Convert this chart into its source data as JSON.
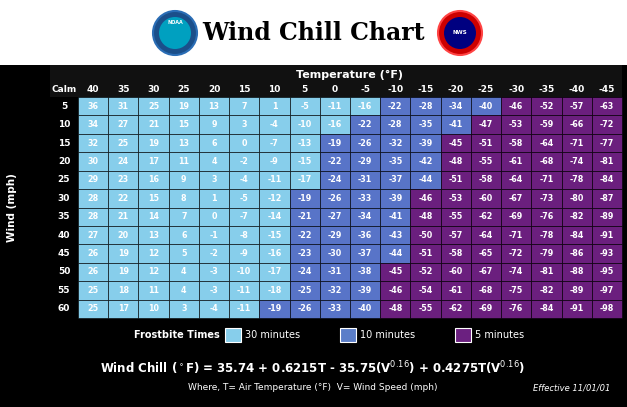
{
  "title": "Wind Chill Chart",
  "temp_label": "Temperature (°F)",
  "wind_label": "Wind (mph)",
  "temp_cols": [
    40,
    35,
    30,
    25,
    20,
    15,
    10,
    5,
    0,
    -5,
    -10,
    -15,
    -20,
    -25,
    -30,
    -35,
    -40,
    -45
  ],
  "wind_rows": [
    5,
    10,
    15,
    20,
    25,
    30,
    35,
    40,
    45,
    50,
    55,
    60
  ],
  "wind_chill": [
    [
      36,
      31,
      25,
      19,
      13,
      7,
      1,
      -5,
      -11,
      -16,
      -22,
      -28,
      -34,
      -40,
      -46,
      -52,
      -57,
      -63
    ],
    [
      34,
      27,
      21,
      15,
      9,
      3,
      -4,
      -10,
      -16,
      -22,
      -28,
      -35,
      -41,
      -47,
      -53,
      -59,
      -66,
      -72
    ],
    [
      32,
      25,
      19,
      13,
      6,
      0,
      -7,
      -13,
      -19,
      -26,
      -32,
      -39,
      -45,
      -51,
      -58,
      -64,
      -71,
      -77
    ],
    [
      30,
      24,
      17,
      11,
      4,
      -2,
      -9,
      -15,
      -22,
      -29,
      -35,
      -42,
      -48,
      -55,
      -61,
      -68,
      -74,
      -81
    ],
    [
      29,
      23,
      16,
      9,
      3,
      -4,
      -11,
      -17,
      -24,
      -31,
      -37,
      -44,
      -51,
      -58,
      -64,
      -71,
      -78,
      -84
    ],
    [
      28,
      22,
      15,
      8,
      1,
      -5,
      -12,
      -19,
      -26,
      -33,
      -39,
      -46,
      -53,
      -60,
      -67,
      -73,
      -80,
      -87
    ],
    [
      28,
      21,
      14,
      7,
      0,
      -7,
      -14,
      -21,
      -27,
      -34,
      -41,
      -48,
      -55,
      -62,
      -69,
      -76,
      -82,
      -89
    ],
    [
      27,
      20,
      13,
      6,
      -1,
      -8,
      -15,
      -22,
      -29,
      -36,
      -43,
      -50,
      -57,
      -64,
      -71,
      -78,
      -84,
      -91
    ],
    [
      26,
      19,
      12,
      5,
      -2,
      -9,
      -16,
      -23,
      -30,
      -37,
      -44,
      -51,
      -58,
      -65,
      -72,
      -79,
      -86,
      -93
    ],
    [
      26,
      19,
      12,
      4,
      -3,
      -10,
      -17,
      -24,
      -31,
      -38,
      -45,
      -52,
      -60,
      -67,
      -74,
      -81,
      -88,
      -95
    ],
    [
      25,
      18,
      11,
      4,
      -3,
      -11,
      -18,
      -25,
      -32,
      -39,
      -46,
      -54,
      -61,
      -68,
      -75,
      -82,
      -89,
      -97
    ],
    [
      25,
      17,
      10,
      3,
      -4,
      -11,
      -19,
      -26,
      -33,
      -40,
      -48,
      -55,
      -62,
      -69,
      -76,
      -84,
      -91,
      -98
    ]
  ],
  "cell_colors": [
    [
      "#87CEEB",
      "#87CEEB",
      "#87CEEB",
      "#87CEEB",
      "#87CEEB",
      "#87CEEB",
      "#87CEEB",
      "#87CEEB",
      "#87CEEB",
      "#87CEEB",
      "#87CEEB",
      "#87CEEB",
      "#87CEEB",
      "#87CEEB",
      "#87CEEB",
      "#87CEEB",
      "#87CEEB",
      "#87CEEB"
    ],
    [
      "#87CEEB",
      "#87CEEB",
      "#87CEEB",
      "#87CEEB",
      "#87CEEB",
      "#87CEEB",
      "#87CEEB",
      "#87CEEB",
      "#87CEEB",
      "#87CEEB",
      "#87CEEB",
      "#87CEEB",
      "#87CEEB",
      "#87CEEB",
      "#87CEEB",
      "#87CEEB",
      "#87CEEB",
      "#87CEEB"
    ],
    [
      "#87CEEB",
      "#87CEEB",
      "#87CEEB",
      "#87CEEB",
      "#87CEEB",
      "#87CEEB",
      "#87CEEB",
      "#87CEEB",
      "#87CEEB",
      "#87CEEB",
      "#87CEEB",
      "#87CEEB",
      "#87CEEB",
      "#87CEEB",
      "#87CEEB",
      "#87CEEB",
      "#87CEEB",
      "#87CEEB"
    ],
    [
      "#87CEEB",
      "#87CEEB",
      "#87CEEB",
      "#87CEEB",
      "#87CEEB",
      "#87CEEB",
      "#87CEEB",
      "#87CEEB",
      "#87CEEB",
      "#87CEEB",
      "#87CEEB",
      "#87CEEB",
      "#87CEEB",
      "#87CEEB",
      "#87CEEB",
      "#87CEEB",
      "#87CEEB",
      "#87CEEB"
    ],
    [
      "#87CEEB",
      "#87CEEB",
      "#87CEEB",
      "#87CEEB",
      "#87CEEB",
      "#87CEEB",
      "#87CEEB",
      "#87CEEB",
      "#87CEEB",
      "#87CEEB",
      "#87CEEB",
      "#87CEEB",
      "#87CEEB",
      "#87CEEB",
      "#87CEEB",
      "#87CEEB",
      "#87CEEB",
      "#87CEEB"
    ],
    [
      "#87CEEB",
      "#87CEEB",
      "#87CEEB",
      "#87CEEB",
      "#87CEEB",
      "#87CEEB",
      "#87CEEB",
      "#87CEEB",
      "#87CEEB",
      "#87CEEB",
      "#87CEEB",
      "#87CEEB",
      "#87CEEB",
      "#87CEEB",
      "#87CEEB",
      "#87CEEB",
      "#87CEEB",
      "#87CEEB"
    ],
    [
      "#87CEEB",
      "#87CEEB",
      "#87CEEB",
      "#87CEEB",
      "#87CEEB",
      "#87CEEB",
      "#87CEEB",
      "#87CEEB",
      "#87CEEB",
      "#87CEEB",
      "#87CEEB",
      "#87CEEB",
      "#87CEEB",
      "#87CEEB",
      "#87CEEB",
      "#87CEEB",
      "#87CEEB",
      "#87CEEB"
    ],
    [
      "#87CEEB",
      "#87CEEB",
      "#87CEEB",
      "#87CEEB",
      "#87CEEB",
      "#87CEEB",
      "#87CEEB",
      "#87CEEB",
      "#87CEEB",
      "#87CEEB",
      "#87CEEB",
      "#87CEEB",
      "#87CEEB",
      "#87CEEB",
      "#87CEEB",
      "#87CEEB",
      "#87CEEB",
      "#87CEEB"
    ],
    [
      "#87CEEB",
      "#87CEEB",
      "#87CEEB",
      "#87CEEB",
      "#87CEEB",
      "#87CEEB",
      "#87CEEB",
      "#87CEEB",
      "#87CEEB",
      "#87CEEB",
      "#87CEEB",
      "#87CEEB",
      "#87CEEB",
      "#87CEEB",
      "#87CEEB",
      "#87CEEB",
      "#87CEEB",
      "#87CEEB"
    ],
    [
      "#87CEEB",
      "#87CEEB",
      "#87CEEB",
      "#87CEEB",
      "#87CEEB",
      "#87CEEB",
      "#87CEEB",
      "#87CEEB",
      "#87CEEB",
      "#87CEEB",
      "#87CEEB",
      "#87CEEB",
      "#87CEEB",
      "#87CEEB",
      "#87CEEB",
      "#87CEEB",
      "#87CEEB",
      "#87CEEB"
    ],
    [
      "#87CEEB",
      "#87CEEB",
      "#87CEEB",
      "#87CEEB",
      "#87CEEB",
      "#87CEEB",
      "#87CEEB",
      "#87CEEB",
      "#87CEEB",
      "#87CEEB",
      "#87CEEB",
      "#87CEEB",
      "#87CEEB",
      "#87CEEB",
      "#87CEEB",
      "#87CEEB",
      "#87CEEB",
      "#87CEEB"
    ],
    [
      "#87CEEB",
      "#87CEEB",
      "#87CEEB",
      "#87CEEB",
      "#87CEEB",
      "#87CEEB",
      "#87CEEB",
      "#87CEEB",
      "#87CEEB",
      "#87CEEB",
      "#87CEEB",
      "#87CEEB",
      "#87CEEB",
      "#87CEEB",
      "#87CEEB",
      "#87CEEB",
      "#87CEEB",
      "#87CEEB"
    ]
  ],
  "color_bg": "#000000",
  "color_text": "#FFFFFF",
  "light_blue": "#87CEEB",
  "medium_blue": "#5B7EC9",
  "dark_blue": "#3A3FB0",
  "purple": "#6B2080",
  "frostbite_legend": [
    {
      "label": "30 minutes",
      "color": "#87CEEB"
    },
    {
      "label": "10 minutes",
      "color": "#5B7EC9"
    },
    {
      "label": "5 minutes",
      "color": "#6B2080"
    }
  ],
  "formula_sub": "Where, T= Air Temperature (°F)  V= Wind Speed (mph)",
  "effective": "Effective 11/01/01"
}
